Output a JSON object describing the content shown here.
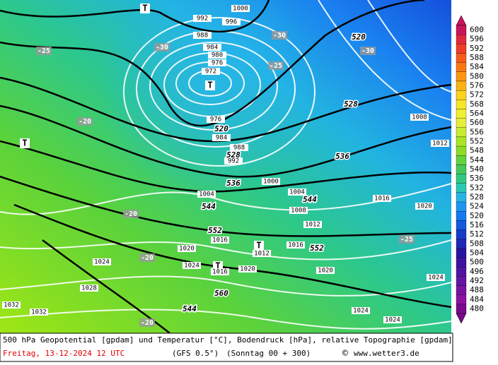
{
  "map": {
    "labels": [
      "T",
      "1000",
      "992",
      "996",
      "988",
      "-30",
      "520",
      "984",
      "-30",
      "-30",
      "980",
      "976",
      "972",
      "T",
      "-25",
      "528",
      "1008",
      "976",
      "520",
      "984",
      "1012",
      "988",
      "528",
      "992",
      "536",
      "536",
      "1000",
      "1004",
      "1004",
      "544",
      "1016",
      "1020",
      "544",
      "1008",
      "-20",
      "1012",
      "552",
      "1016",
      "-25",
      "T",
      "1016",
      "552",
      "1012",
      "1020",
      "-20",
      "1024",
      "1024",
      "T",
      "1016",
      "1020",
      "1020",
      "1024",
      "1028",
      "560",
      "1032",
      "1032",
      "544",
      "1024",
      "1024",
      "-20",
      "T",
      "-20",
      "-25"
    ],
    "colorbar": {
      "values": [
        600,
        596,
        592,
        588,
        584,
        580,
        576,
        572,
        568,
        564,
        560,
        556,
        552,
        548,
        544,
        540,
        536,
        532,
        528,
        524,
        520,
        516,
        512,
        508,
        504,
        500,
        496,
        492,
        488,
        484,
        480
      ],
      "colors": [
        "#c8145a",
        "#e0283c",
        "#f03c28",
        "#f85a1e",
        "#fa7814",
        "#fc9614",
        "#fcb414",
        "#fcd21e",
        "#f8e628",
        "#f0f032",
        "#e6f03c",
        "#c8ec32",
        "#aae628",
        "#8cdc28",
        "#64d23c",
        "#46c85a",
        "#32c882",
        "#28c8b4",
        "#28b4e6",
        "#1e96f0",
        "#1478f0",
        "#145adc",
        "#143cc8",
        "#1e28b4",
        "#2814a0",
        "#3c14a0",
        "#5014a0",
        "#6414a0",
        "#7814a0",
        "#8c14a0",
        "#780a8c"
      ]
    },
    "footer": {
      "description": "500 hPa Geopotential [gpdam] und Temperatur [°C], Bodendruck [hPa], relative Topographie [gpdam]",
      "date": "Freitag, 13-12-2024  12 UTC",
      "model": "(GFS 0.5°)",
      "run": "(Sonntag 00 + 300)",
      "copyright": "©",
      "site": "www.wetter3.de"
    }
  }
}
